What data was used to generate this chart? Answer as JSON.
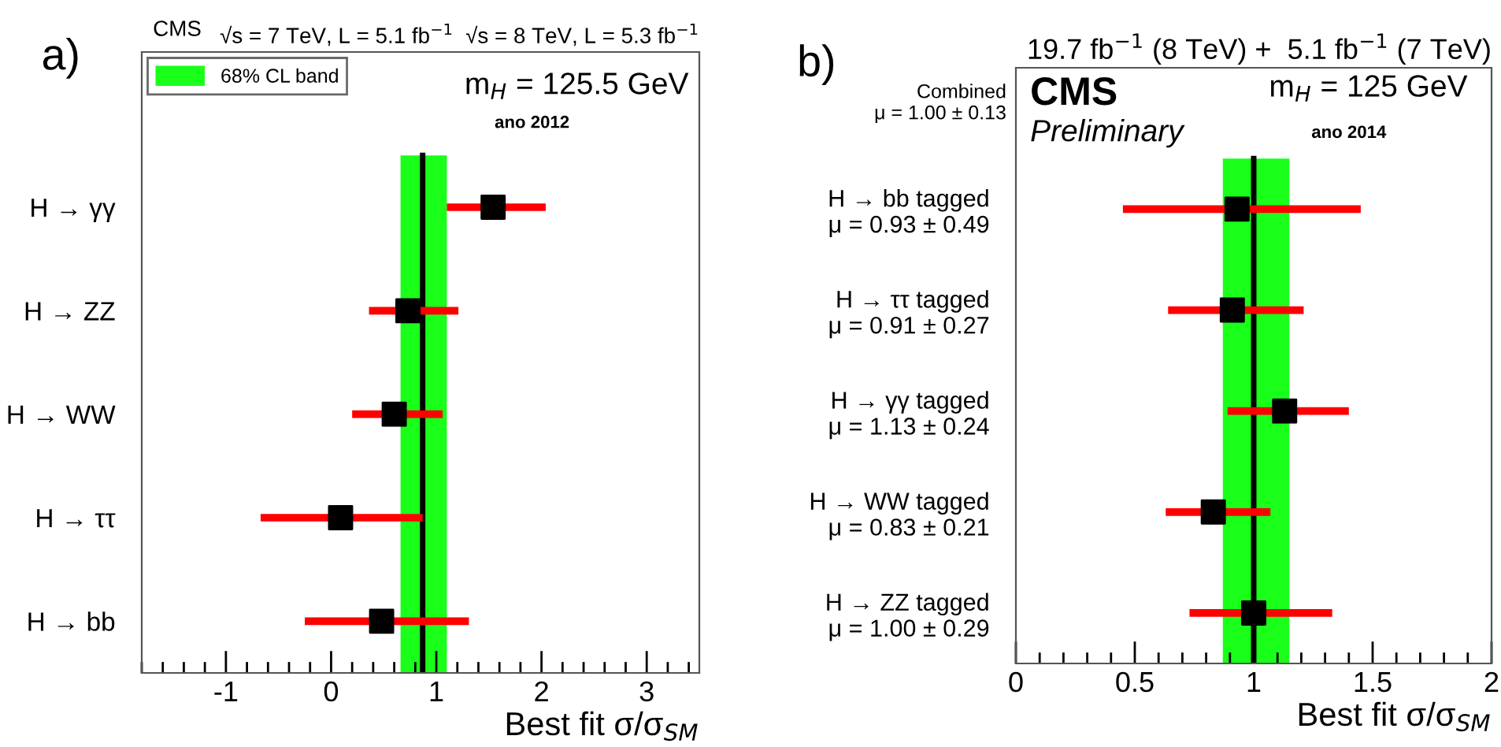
{
  "chart_data": [
    {
      "type": "scatter",
      "orientation": "horizontal",
      "title": "√s = 7 TeV, L = 5.1 fb$^{−1}$  √s = 8 TeV, L = 5.3 fb$^{−1}$",
      "xlabel": "Best fit σ/σ$_{SM}$",
      "categories": [
        "H → γγ",
        "H → ZZ",
        "H → WW",
        "H → ττ",
        "H → bb"
      ],
      "series": [
        {
          "color": "#000000",
          "values": [
            1.54,
            0.73,
            0.6,
            0.09,
            0.48
          ],
          "errors": [
            [
              1.1,
              2.04
            ],
            [
              0.36,
              1.21
            ],
            [
              0.2,
              1.06
            ],
            [
              -0.67,
              0.87
            ],
            [
              -0.25,
              1.31
            ]
          ]
        }
      ],
      "marker": "square",
      "xlim": [
        -1.8,
        3.5
      ],
      "xticks": [
        -1,
        0,
        1,
        2,
        3
      ],
      "ref_lines": [
        {
          "axis": "x",
          "value": 0.87,
          "color": "#000000"
        }
      ],
      "bands": [
        {
          "axis": "x",
          "from": 0.66,
          "to": 1.1,
          "label": "68% CL band",
          "color": "#19ff19"
        }
      ],
      "legend": "top left",
      "grid": false,
      "annotations": [
        "a)",
        "CMS",
        "m$_{H}$ = 125.5 GeV",
        "ano 2012"
      ]
    },
    {
      "type": "scatter",
      "orientation": "horizontal",
      "title": "19.7 fb$^{−1}$ (8 TeV) +  5.1 fb$^{−1}$ (7 TeV)",
      "xlabel": "Best fit σ/σ$_{SM}$",
      "categories": [
        "H → bb tagged\nμ = 0.93 ± 0.49",
        "H → ττ tagged\nμ = 0.91 ± 0.27",
        "H → γγ tagged\nμ = 1.13 ± 0.24",
        "H → WW tagged\nμ = 0.83 ± 0.21",
        "H → ZZ tagged\nμ = 1.00 ± 0.29"
      ],
      "series": [
        {
          "color": "#000000",
          "values": [
            0.93,
            0.91,
            1.13,
            0.83,
            1.0
          ],
          "errors": [
            [
              0.45,
              1.45
            ],
            [
              0.64,
              1.21
            ],
            [
              0.89,
              1.4
            ],
            [
              0.63,
              1.07
            ],
            [
              0.73,
              1.33
            ]
          ]
        }
      ],
      "marker": "square",
      "xlim": [
        0,
        2
      ],
      "xticks": [
        0,
        0.5,
        1,
        1.5,
        2
      ],
      "ref_lines": [
        {
          "axis": "x",
          "value": 1.0,
          "color": "#000000"
        }
      ],
      "bands": [
        {
          "axis": "x",
          "from": 0.87,
          "to": 1.15,
          "color": "#19ff19"
        }
      ],
      "grid": false,
      "annotations": [
        "b)",
        "CMS",
        "Preliminary",
        "m$_{H}$ = 125 GeV",
        "ano 2014",
        "Combined\nμ = 1.00 ± 0.13"
      ]
    }
  ]
}
